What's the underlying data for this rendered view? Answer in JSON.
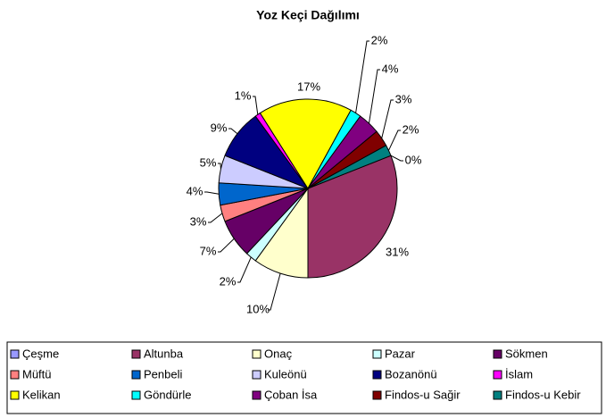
{
  "chart_data": {
    "type": "pie",
    "title": "Yoz Keçi Dağılımı",
    "categories": [
      "Çeşme",
      "Altunba",
      "Onaç",
      "Pazar",
      "Sökmen",
      "Müftü",
      "Penbeli",
      "Kuleönü",
      "Bozanönü",
      "İslam",
      "Kelikan",
      "Göndürle",
      "Çoban İsa",
      "Findos-u Sağir",
      "Findos-u Kebir"
    ],
    "values": [
      0,
      31,
      10,
      2,
      7,
      3,
      4,
      5,
      9,
      1,
      17,
      2,
      4,
      3,
      2
    ],
    "value_labels": [
      "0%",
      "31%",
      "10%",
      "2%",
      "7%",
      "3%",
      "4%",
      "5%",
      "9%",
      "1%",
      "17%",
      "2%",
      "4%",
      "3%",
      "2%"
    ],
    "colors": [
      "#9999FF",
      "#993366",
      "#FFFFCC",
      "#CCFFFF",
      "#660066",
      "#FF8080",
      "#0066CC",
      "#CCCCFF",
      "#000080",
      "#FF00FF",
      "#FFFF00",
      "#00FFFF",
      "#800080",
      "#800000",
      "#008080"
    ],
    "legend": "bottom"
  }
}
